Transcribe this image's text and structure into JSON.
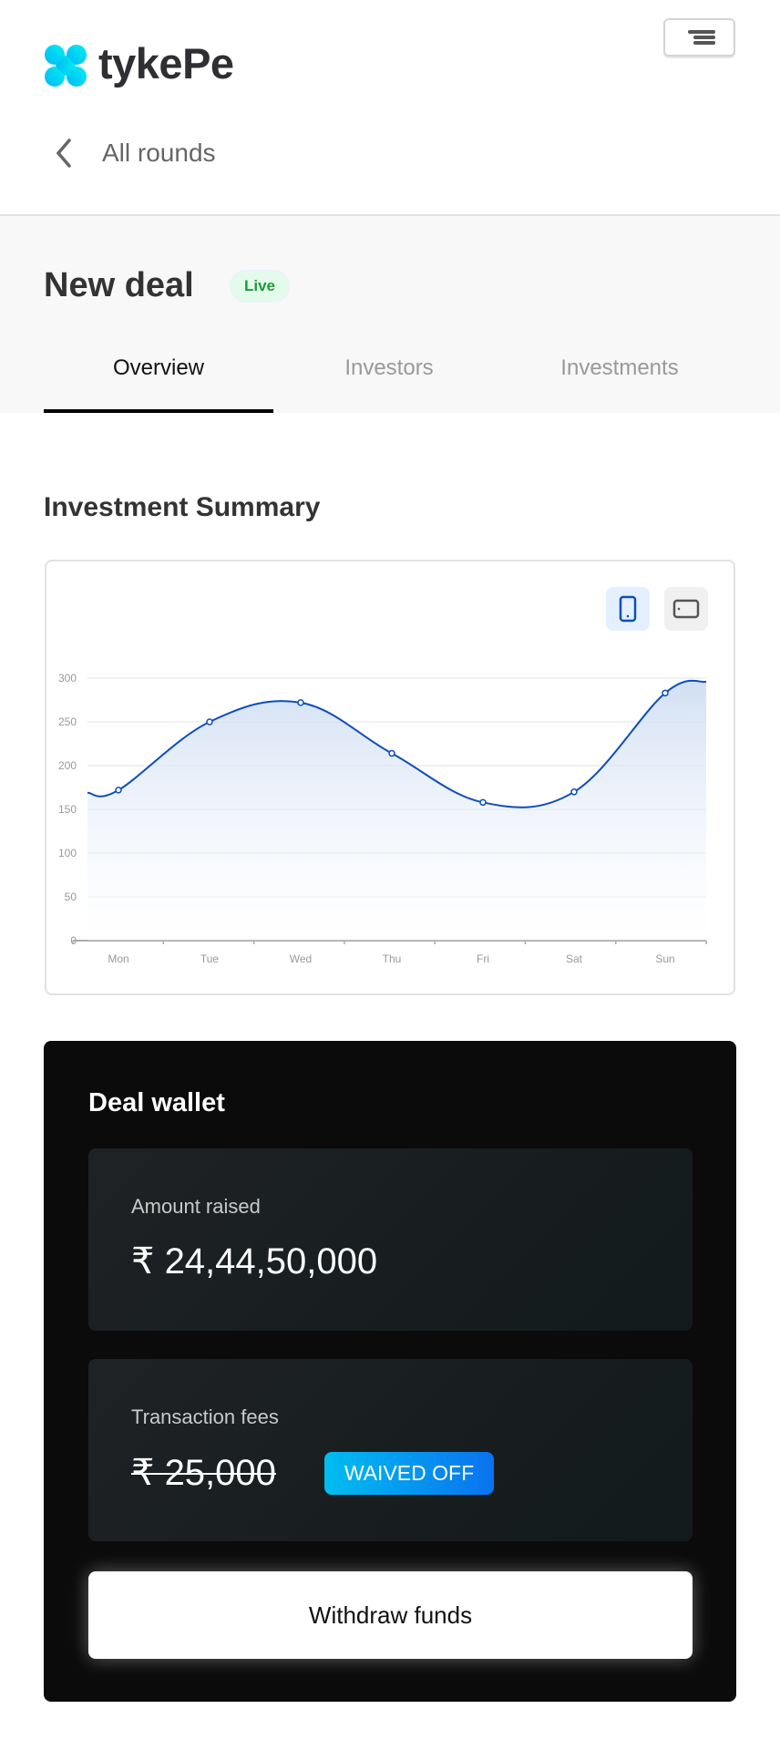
{
  "header": {
    "logo_text": "tykePe",
    "menu_icon": "hamburger-icon",
    "back_label": "All rounds",
    "back_icon": "chevron-left-icon"
  },
  "deal": {
    "title": "New deal",
    "status": "Live",
    "status_color": "#1e9a3c"
  },
  "tabs": [
    {
      "label": "Overview",
      "active": true
    },
    {
      "label": "Investors",
      "active": false
    },
    {
      "label": "Investments",
      "active": false
    }
  ],
  "summary": {
    "title": "Investment Summary",
    "view_toggle": [
      {
        "icon": "mobile-icon",
        "active": true
      },
      {
        "icon": "tablet-icon",
        "active": false
      }
    ]
  },
  "chart_data": {
    "type": "area",
    "categories": [
      "Mon",
      "Tue",
      "Wed",
      "Thu",
      "Fri",
      "Sat",
      "Sun"
    ],
    "values": [
      172,
      250,
      272,
      214,
      158,
      170,
      283
    ],
    "ylim": [
      0,
      300
    ],
    "yticks": [
      0,
      50,
      100,
      150,
      200,
      250,
      300
    ],
    "grid": true,
    "smooth": true,
    "line_color": "#0d4fba"
  },
  "wallet": {
    "title": "Deal wallet",
    "amount_label": "Amount raised",
    "amount_value": "₹ 24,44,50,000",
    "fees_label": "Transaction fees",
    "fees_value": "₹ 25,000",
    "fees_badge": "WAIVED OFF",
    "withdraw_label": "Withdraw funds"
  }
}
